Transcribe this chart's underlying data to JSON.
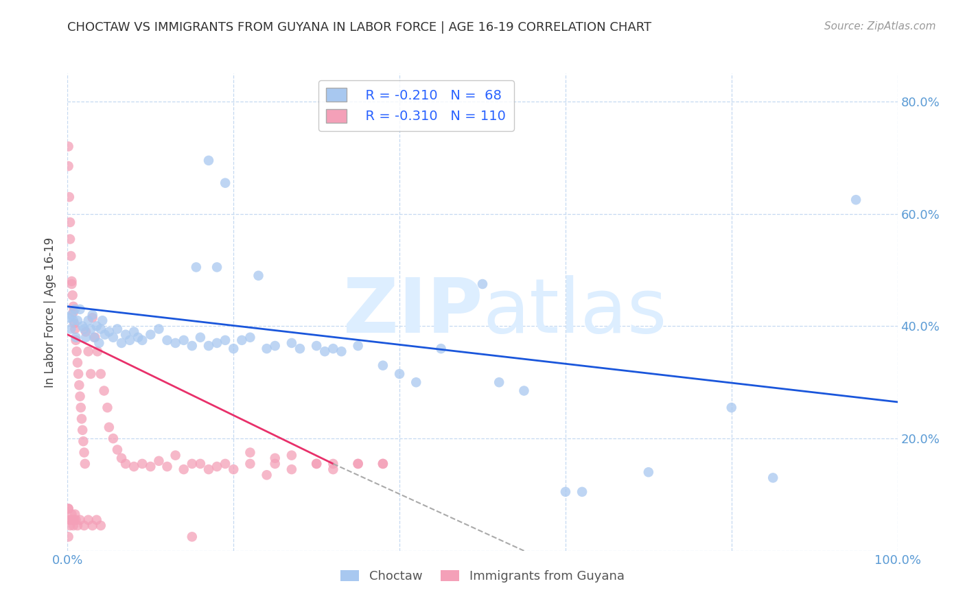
{
  "title": "CHOCTAW VS IMMIGRANTS FROM GUYANA IN LABOR FORCE | AGE 16-19 CORRELATION CHART",
  "source": "Source: ZipAtlas.com",
  "ylabel": "In Labor Force | Age 16-19",
  "xlim": [
    0.0,
    1.0
  ],
  "ylim": [
    0.0,
    0.85
  ],
  "choctaw_color": "#a8c8f0",
  "guyana_color": "#f4a0b8",
  "choctaw_line_color": "#1a56db",
  "guyana_line_color": "#e8306a",
  "background_color": "#ffffff",
  "legend_r_choctaw": "R = -0.210",
  "legend_n_choctaw": "N =  68",
  "legend_r_guyana": "R = -0.310",
  "legend_n_guyana": "N = 110",
  "choctaw_points": [
    [
      0.002,
      0.415
    ],
    [
      0.004,
      0.395
    ],
    [
      0.005,
      0.42
    ],
    [
      0.007,
      0.41
    ],
    [
      0.009,
      0.43
    ],
    [
      0.01,
      0.38
    ],
    [
      0.012,
      0.41
    ],
    [
      0.015,
      0.43
    ],
    [
      0.018,
      0.4
    ],
    [
      0.02,
      0.395
    ],
    [
      0.022,
      0.38
    ],
    [
      0.025,
      0.41
    ],
    [
      0.028,
      0.395
    ],
    [
      0.03,
      0.42
    ],
    [
      0.032,
      0.38
    ],
    [
      0.035,
      0.4
    ],
    [
      0.038,
      0.37
    ],
    [
      0.04,
      0.395
    ],
    [
      0.042,
      0.41
    ],
    [
      0.045,
      0.385
    ],
    [
      0.05,
      0.39
    ],
    [
      0.055,
      0.38
    ],
    [
      0.06,
      0.395
    ],
    [
      0.065,
      0.37
    ],
    [
      0.07,
      0.385
    ],
    [
      0.075,
      0.375
    ],
    [
      0.08,
      0.39
    ],
    [
      0.085,
      0.38
    ],
    [
      0.09,
      0.375
    ],
    [
      0.1,
      0.385
    ],
    [
      0.11,
      0.395
    ],
    [
      0.12,
      0.375
    ],
    [
      0.13,
      0.37
    ],
    [
      0.14,
      0.375
    ],
    [
      0.15,
      0.365
    ],
    [
      0.16,
      0.38
    ],
    [
      0.17,
      0.365
    ],
    [
      0.18,
      0.37
    ],
    [
      0.19,
      0.375
    ],
    [
      0.2,
      0.36
    ],
    [
      0.21,
      0.375
    ],
    [
      0.22,
      0.38
    ],
    [
      0.23,
      0.49
    ],
    [
      0.24,
      0.36
    ],
    [
      0.25,
      0.365
    ],
    [
      0.27,
      0.37
    ],
    [
      0.28,
      0.36
    ],
    [
      0.3,
      0.365
    ],
    [
      0.31,
      0.355
    ],
    [
      0.32,
      0.36
    ],
    [
      0.33,
      0.355
    ],
    [
      0.35,
      0.365
    ],
    [
      0.38,
      0.33
    ],
    [
      0.4,
      0.315
    ],
    [
      0.42,
      0.3
    ],
    [
      0.45,
      0.36
    ],
    [
      0.5,
      0.475
    ],
    [
      0.52,
      0.3
    ],
    [
      0.55,
      0.285
    ],
    [
      0.6,
      0.105
    ],
    [
      0.62,
      0.105
    ],
    [
      0.7,
      0.14
    ],
    [
      0.8,
      0.255
    ],
    [
      0.85,
      0.13
    ],
    [
      0.95,
      0.625
    ],
    [
      0.17,
      0.695
    ],
    [
      0.19,
      0.655
    ],
    [
      0.155,
      0.505
    ],
    [
      0.18,
      0.505
    ]
  ],
  "guyana_points": [
    [
      0.001,
      0.72
    ],
    [
      0.001,
      0.685
    ],
    [
      0.002,
      0.63
    ],
    [
      0.003,
      0.585
    ],
    [
      0.003,
      0.555
    ],
    [
      0.004,
      0.525
    ],
    [
      0.005,
      0.48
    ],
    [
      0.005,
      0.475
    ],
    [
      0.006,
      0.455
    ],
    [
      0.007,
      0.435
    ],
    [
      0.007,
      0.425
    ],
    [
      0.008,
      0.405
    ],
    [
      0.009,
      0.395
    ],
    [
      0.01,
      0.375
    ],
    [
      0.011,
      0.355
    ],
    [
      0.012,
      0.335
    ],
    [
      0.013,
      0.315
    ],
    [
      0.014,
      0.295
    ],
    [
      0.015,
      0.275
    ],
    [
      0.016,
      0.255
    ],
    [
      0.017,
      0.235
    ],
    [
      0.018,
      0.215
    ],
    [
      0.019,
      0.195
    ],
    [
      0.02,
      0.175
    ],
    [
      0.021,
      0.155
    ],
    [
      0.022,
      0.39
    ],
    [
      0.025,
      0.355
    ],
    [
      0.028,
      0.315
    ],
    [
      0.03,
      0.415
    ],
    [
      0.033,
      0.38
    ],
    [
      0.036,
      0.355
    ],
    [
      0.04,
      0.315
    ],
    [
      0.044,
      0.285
    ],
    [
      0.048,
      0.255
    ],
    [
      0.05,
      0.22
    ],
    [
      0.055,
      0.2
    ],
    [
      0.06,
      0.18
    ],
    [
      0.065,
      0.165
    ],
    [
      0.07,
      0.155
    ],
    [
      0.08,
      0.15
    ],
    [
      0.09,
      0.155
    ],
    [
      0.1,
      0.15
    ],
    [
      0.11,
      0.16
    ],
    [
      0.12,
      0.15
    ],
    [
      0.13,
      0.17
    ],
    [
      0.14,
      0.145
    ],
    [
      0.15,
      0.155
    ],
    [
      0.16,
      0.155
    ],
    [
      0.17,
      0.145
    ],
    [
      0.18,
      0.15
    ],
    [
      0.19,
      0.155
    ],
    [
      0.2,
      0.145
    ],
    [
      0.22,
      0.155
    ],
    [
      0.24,
      0.135
    ],
    [
      0.25,
      0.155
    ],
    [
      0.27,
      0.145
    ],
    [
      0.3,
      0.155
    ],
    [
      0.32,
      0.155
    ],
    [
      0.35,
      0.155
    ],
    [
      0.38,
      0.155
    ],
    [
      0.001,
      0.075
    ],
    [
      0.002,
      0.055
    ],
    [
      0.003,
      0.045
    ],
    [
      0.004,
      0.055
    ],
    [
      0.005,
      0.065
    ],
    [
      0.006,
      0.055
    ],
    [
      0.007,
      0.045
    ],
    [
      0.008,
      0.055
    ],
    [
      0.009,
      0.065
    ],
    [
      0.01,
      0.055
    ],
    [
      0.012,
      0.045
    ],
    [
      0.015,
      0.055
    ],
    [
      0.02,
      0.045
    ],
    [
      0.025,
      0.055
    ],
    [
      0.03,
      0.045
    ],
    [
      0.035,
      0.055
    ],
    [
      0.04,
      0.045
    ],
    [
      0.001,
      0.025
    ],
    [
      0.15,
      0.025
    ],
    [
      0.001,
      0.075
    ],
    [
      0.22,
      0.175
    ],
    [
      0.25,
      0.165
    ],
    [
      0.27,
      0.17
    ],
    [
      0.3,
      0.155
    ],
    [
      0.32,
      0.145
    ],
    [
      0.35,
      0.155
    ],
    [
      0.38,
      0.155
    ]
  ],
  "choctaw_line": [
    [
      0.0,
      0.435
    ],
    [
      1.0,
      0.265
    ]
  ],
  "guyana_line_solid": [
    [
      0.0,
      0.385
    ],
    [
      0.32,
      0.155
    ]
  ],
  "guyana_line_dashed": [
    [
      0.32,
      0.155
    ],
    [
      0.55,
      0.0
    ]
  ]
}
